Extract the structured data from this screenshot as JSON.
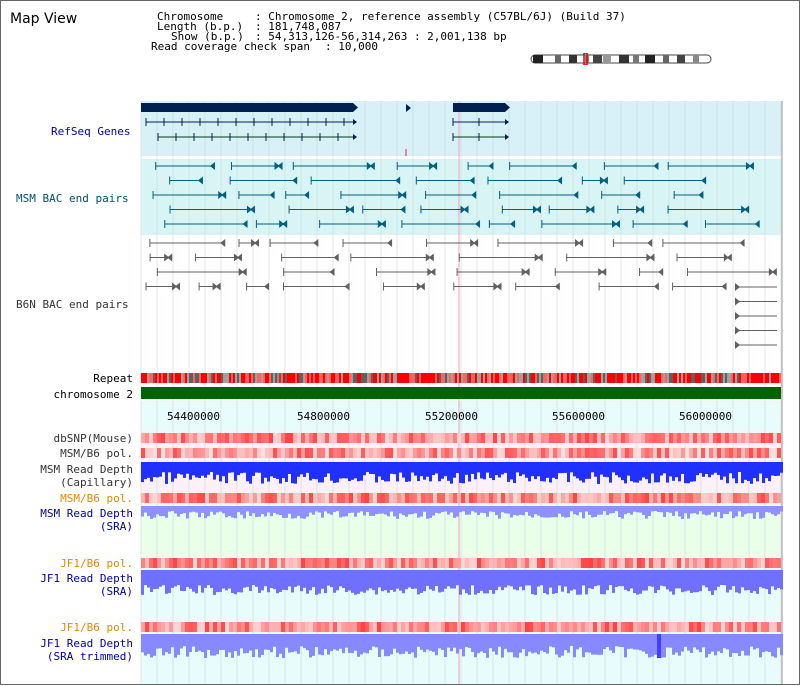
{
  "title": "Map View",
  "info": {
    "chromosome_key": "Chromosome",
    "chromosome_val": ": Chromosome 2, reference assembly (C57BL/6J) (Build 37)",
    "length_key": "Length (b.p.)",
    "length_val": ": 181,748,087",
    "show_key": "Show (b.p.)",
    "show_val": ": 54,313,126-56,314,263 : 2,001,138 bp",
    "coverage_key": "Read coverage check span",
    "coverage_val": ": 10,000"
  },
  "tracks": {
    "refseq": "RefSeq Genes",
    "msm_bac": "MSM BAC end pairs",
    "b6n_bac": "B6N BAC end pairs",
    "repeat": "Repeat",
    "chromosome": "chromosome 2",
    "dbsnp": "dbSNP(Mouse)",
    "msm_b6_pol_1": "MSM/B6 pol.",
    "msm_read_depth_cap_1": "MSM Read Depth",
    "msm_read_depth_cap_2": "(Capillary)",
    "msm_b6_pol_2": "MSM/B6 pol.",
    "msm_read_depth_sra_1": "MSM Read Depth",
    "msm_read_depth_sra_2": "(SRA)",
    "jf1_b6_pol_1": "JF1/B6 pol.",
    "jf1_read_depth_sra_1": "JF1 Read Depth",
    "jf1_read_depth_sra_2": "(SRA)",
    "jf1_b6_pol_2": "JF1/B6 pol.",
    "jf1_read_depth_trim_1": "JF1 Read Depth",
    "jf1_read_depth_trim_2": "(SRA trimmed)"
  },
  "axis": {
    "ticks": [
      "54400000",
      "54800000",
      "55200000",
      "55600000",
      "56000000"
    ]
  },
  "colors": {
    "track_bg_cyan": "#d8f0f8",
    "chromosome_green": "#006400",
    "gene_navy": "#002050",
    "msm_bac_teal": "#006080",
    "b6n_bac_gray": "#606060",
    "depth_blue": "#2030ff",
    "depth_light_blue": "#7070ff"
  }
}
